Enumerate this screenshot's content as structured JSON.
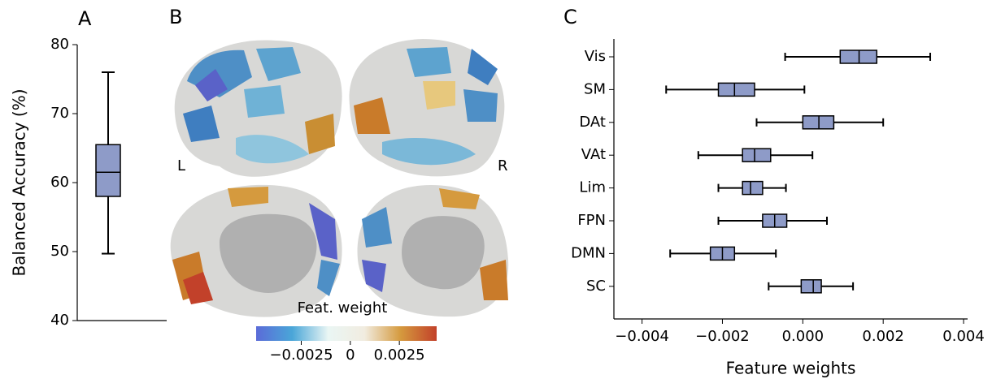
{
  "chart_data": [
    {
      "type": "box",
      "panel": "A",
      "ylabel": "Balanced Accuracy (%)",
      "ylim": [
        40,
        80
      ],
      "yticks": [
        40,
        50,
        60,
        70,
        80
      ],
      "color": "#8e9bc8",
      "box": {
        "whislo": 49.7,
        "q1": 58,
        "med": 61.5,
        "q3": 65.5,
        "whishi": 76
      }
    },
    {
      "type": "colorbar",
      "panel": "B",
      "label": "Feat. weight",
      "annotations": [
        "L",
        "R"
      ],
      "clim": [
        -0.0048,
        0.0044
      ],
      "ticks": [
        {
          "value": -0.0025,
          "label": "−0.0025"
        },
        0,
        0.0025
      ],
      "colors": [
        "#5b6bd8",
        "#4aa6d8",
        "#eaf6f4",
        "#f1ece0",
        "#d59a3e",
        "#c2412a"
      ]
    },
    {
      "type": "hbox",
      "panel": "C",
      "xlabel": "Feature weights",
      "xlim": [
        -0.0047,
        0.0041
      ],
      "xticks": [
        {
          "value": -0.004,
          "label": "−0.004"
        },
        {
          "value": -0.002,
          "label": "−0.002"
        },
        {
          "value": 0,
          "label": "0.000"
        },
        0.002,
        0.004
      ],
      "color": "#8e9bc8",
      "categories": [
        "Vis",
        "SM",
        "DAt",
        "VAt",
        "Lim",
        "FPN",
        "DMN",
        "SC"
      ],
      "boxes": [
        {
          "whislo": -0.00044,
          "q1": 0.00093,
          "med": 0.0014,
          "q3": 0.00184,
          "whishi": 0.00317
        },
        {
          "whislo": -0.0034,
          "q1": -0.0021,
          "med": -0.0017,
          "q3": -0.0012,
          "whishi": 4e-05
        },
        {
          "whislo": -0.00115,
          "q1": 0,
          "med": 0.0004,
          "q3": 0.00077,
          "whishi": 0.002
        },
        {
          "whislo": -0.0026,
          "q1": -0.0015,
          "med": -0.0012,
          "q3": -0.0008,
          "whishi": 0.00024
        },
        {
          "whislo": -0.0021,
          "q1": -0.0015,
          "med": -0.0013,
          "q3": -0.001,
          "whishi": -0.00042
        },
        {
          "whislo": -0.0021,
          "q1": -0.001,
          "med": -0.0007,
          "q3": -0.0004,
          "whishi": 0.0006
        },
        {
          "whislo": -0.0033,
          "q1": -0.0023,
          "med": -0.002,
          "q3": -0.0017,
          "whishi": -0.00067
        },
        {
          "whislo": -0.00085,
          "q1": -4e-05,
          "med": 0.00026,
          "q3": 0.00046,
          "whishi": 0.00125
        }
      ]
    }
  ]
}
